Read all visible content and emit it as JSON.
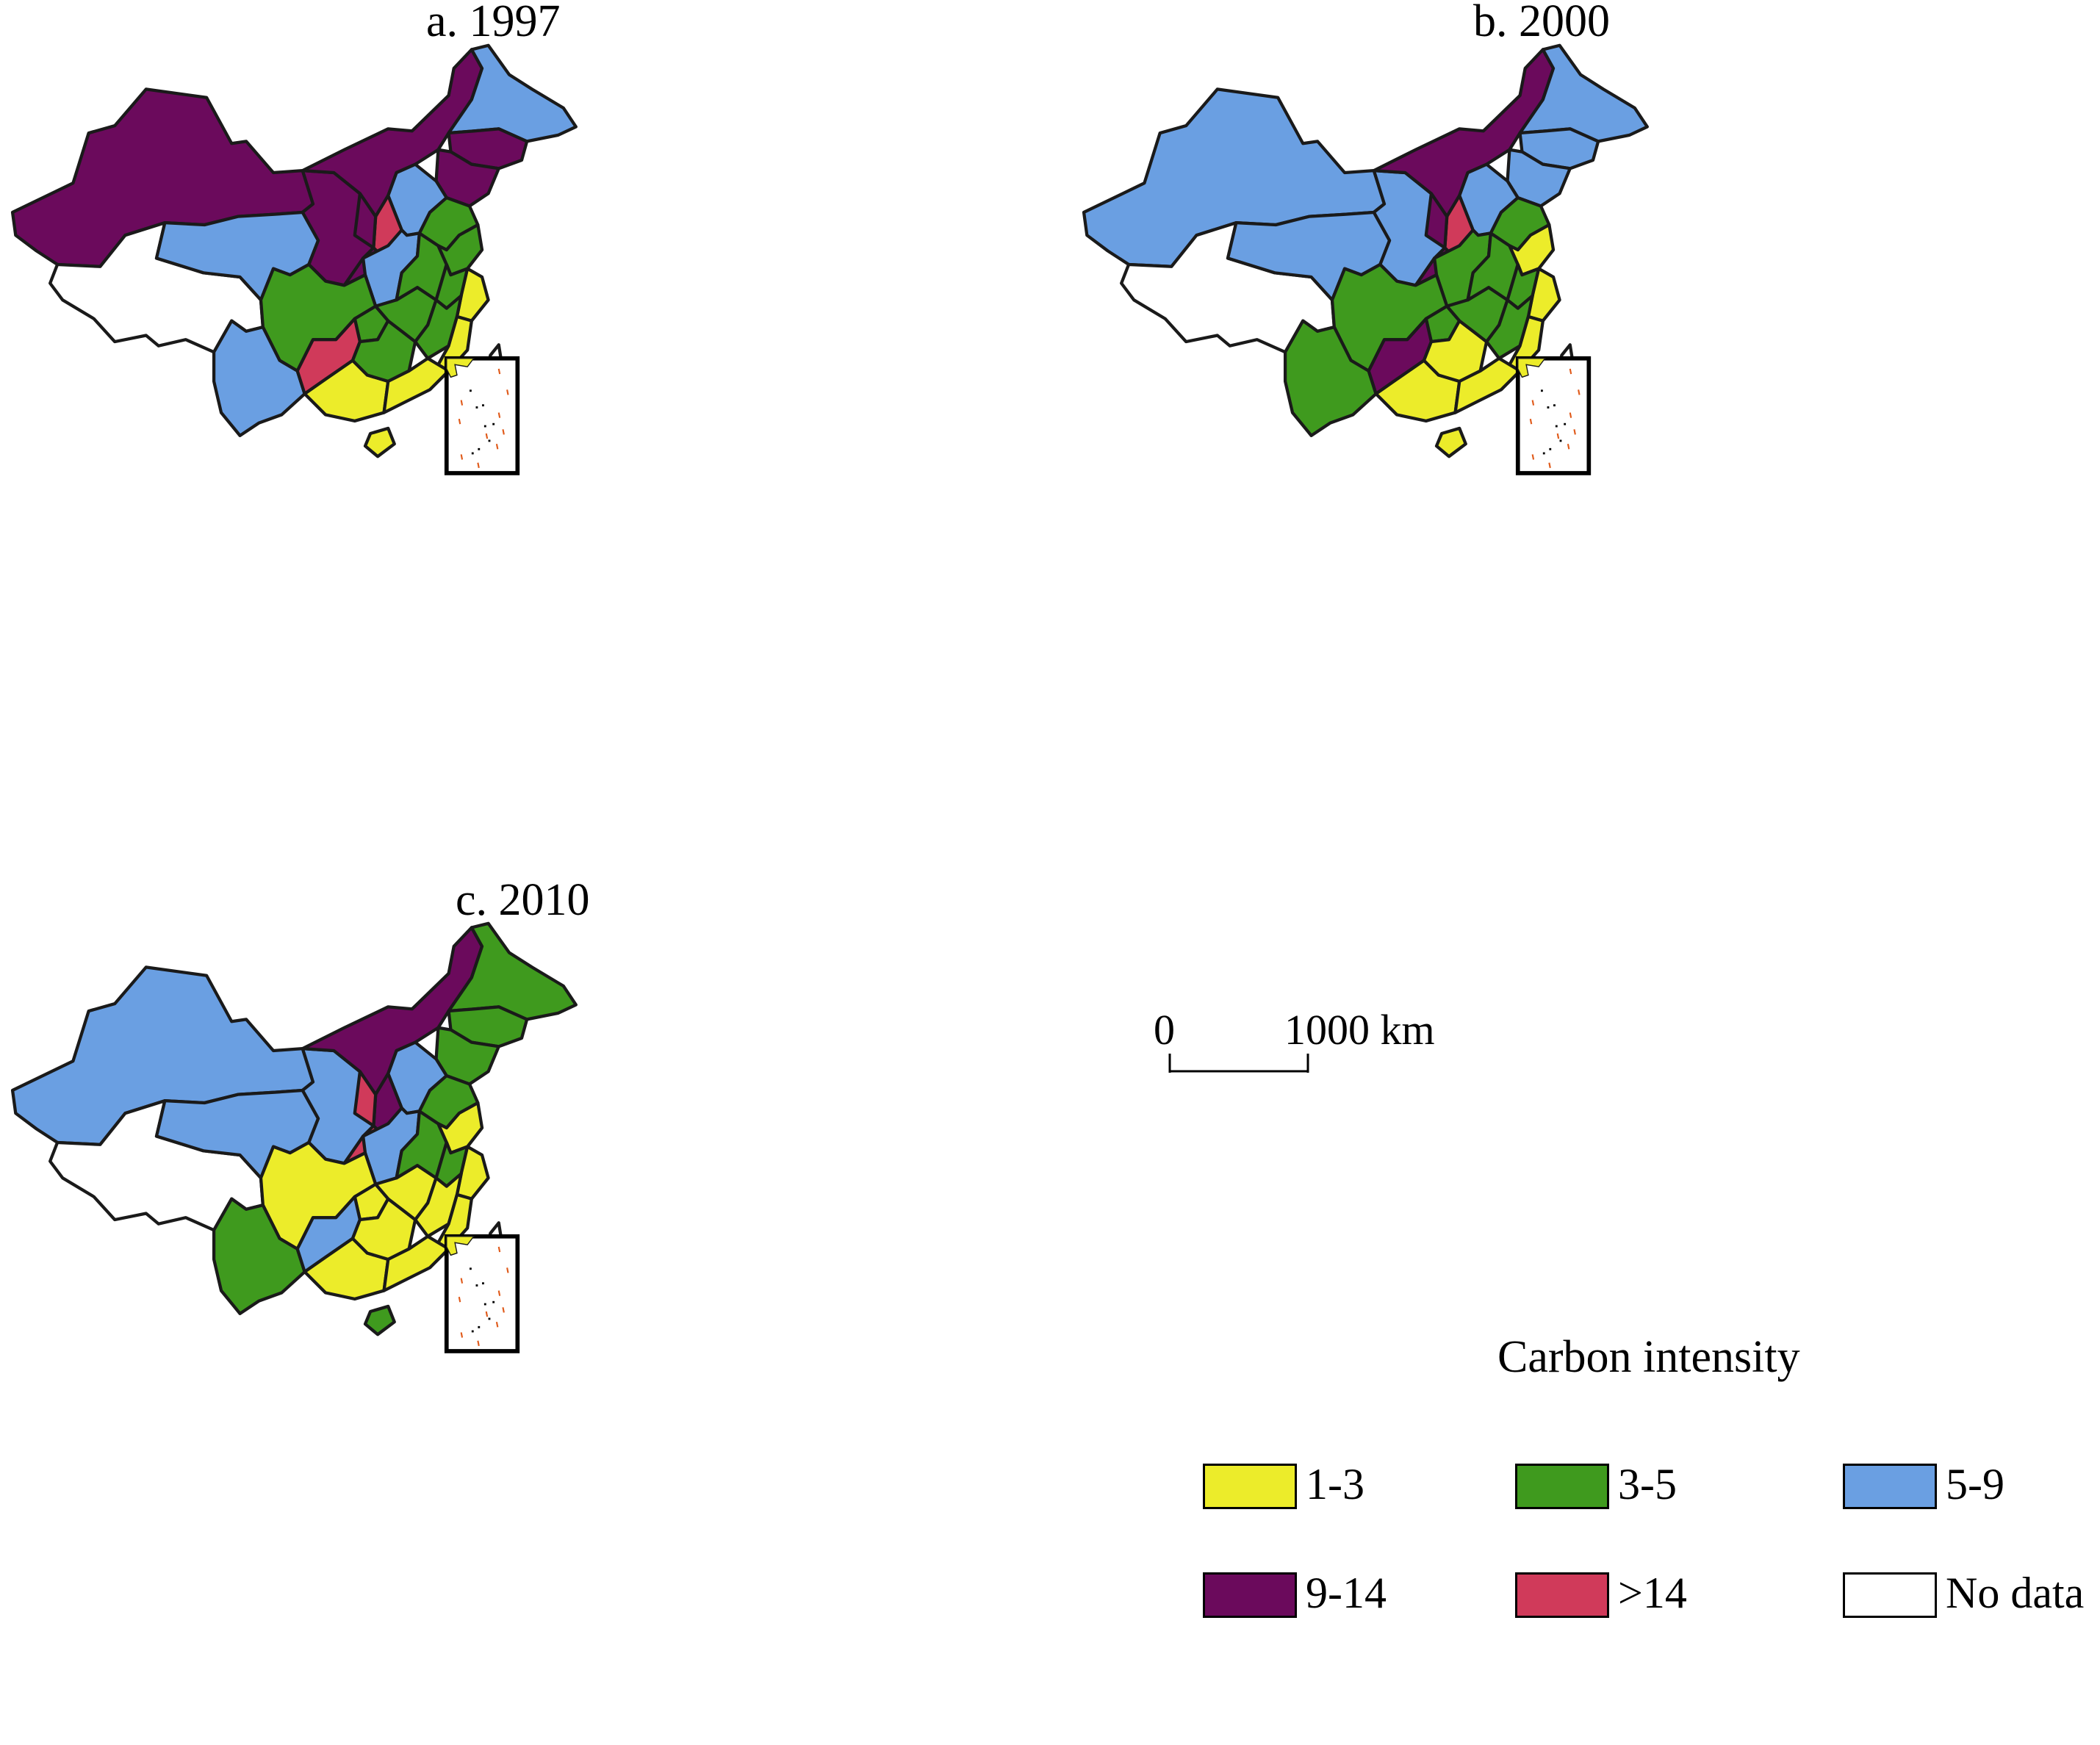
{
  "panels": {
    "a": {
      "title": "a. 1997"
    },
    "b": {
      "title": "b. 2000"
    },
    "c": {
      "title": "c. 2010"
    }
  },
  "scale": {
    "zero": "0",
    "distance": "1000 km"
  },
  "legend": {
    "title": "Carbon intensity",
    "items": [
      {
        "label": "1-3",
        "color": "#ecec2a"
      },
      {
        "label": "3-5",
        "color": "#3f9a1e"
      },
      {
        "label": "5-9",
        "color": "#6a9fe2"
      },
      {
        "label": "9-14",
        "color": "#6b0a5c"
      },
      {
        "label": ">14",
        "color": "#d03a5a"
      },
      {
        "label": "No data",
        "color": "#ffffff"
      }
    ]
  },
  "colors": {
    "c13": "#ecec2a",
    "c35": "#3f9a1e",
    "c59": "#6a9fe2",
    "c914": "#6b0a5c",
    "c14": "#d03a5a",
    "nodata": "#ffffff",
    "border": "#1a1a1a",
    "islands": "#e05a1a"
  },
  "region_classes": {
    "a": {
      "xinjiang": "c914",
      "tibet": "nodata",
      "qinghai": "c59",
      "gansu": "c914",
      "inner_mongolia": "c914",
      "heilongjiang": "c59",
      "jilin": "c914",
      "liaoning": "c914",
      "hebei": "c59",
      "shanxi": "c14",
      "shaanxi": "c59",
      "ningxia": "c914",
      "sichuan": "c35",
      "yunnan": "c59",
      "guizhou": "c14",
      "chongqing": "c35",
      "hubei": "c35",
      "hunan": "c35",
      "henan": "c35",
      "shandong": "c35",
      "jiangsu": "c35",
      "anhui": "c35",
      "zhejiang": "c13",
      "jiangxi": "c35",
      "fujian": "c13",
      "guangdong": "c13",
      "guangxi": "c13",
      "hainan": "c13",
      "taiwan": "nodata"
    },
    "b": {
      "xinjiang": "c59",
      "tibet": "nodata",
      "qinghai": "c59",
      "gansu": "c59",
      "inner_mongolia": "c914",
      "heilongjiang": "c59",
      "jilin": "c59",
      "liaoning": "c59",
      "hebei": "c59",
      "shanxi": "c14",
      "shaanxi": "c35",
      "ningxia": "c914",
      "sichuan": "c35",
      "yunnan": "c35",
      "guizhou": "c914",
      "chongqing": "c35",
      "hubei": "c35",
      "hunan": "c13",
      "henan": "c35",
      "shandong": "c35",
      "jiangsu": "c13",
      "anhui": "c35",
      "zhejiang": "c13",
      "jiangxi": "c35",
      "fujian": "c13",
      "guangdong": "c13",
      "guangxi": "c13",
      "hainan": "c13",
      "taiwan": "nodata"
    },
    "c": {
      "xinjiang": "c59",
      "tibet": "nodata",
      "qinghai": "c59",
      "gansu": "c59",
      "inner_mongolia": "c914",
      "heilongjiang": "c35",
      "jilin": "c35",
      "liaoning": "c35",
      "hebei": "c59",
      "shanxi": "c914",
      "shaanxi": "c59",
      "ningxia": "c14",
      "sichuan": "c13",
      "yunnan": "c35",
      "guizhou": "c59",
      "chongqing": "c13",
      "hubei": "c13",
      "hunan": "c13",
      "henan": "c35",
      "shandong": "c35",
      "jiangsu": "c13",
      "anhui": "c35",
      "zhejiang": "c13",
      "jiangxi": "c13",
      "fujian": "c13",
      "guangdong": "c13",
      "guangxi": "c13",
      "hainan": "c35",
      "taiwan": "nodata"
    }
  }
}
